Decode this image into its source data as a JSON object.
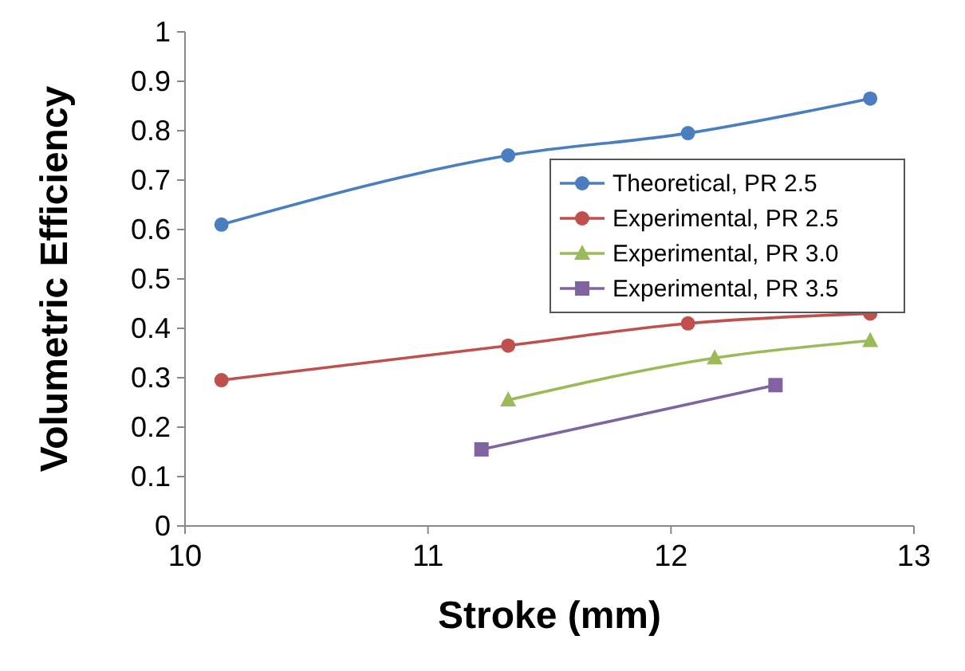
{
  "chart_data": {
    "type": "line",
    "xlabel": "Stroke (mm)",
    "ylabel": "Volumetric Efficiency",
    "xlim": [
      10,
      13
    ],
    "xticks": [
      10,
      11,
      12,
      13
    ],
    "ylim": [
      0,
      1
    ],
    "yticks": [
      0,
      0.1,
      0.2,
      0.3,
      0.4,
      0.5,
      0.6,
      0.7,
      0.8,
      0.9,
      1
    ],
    "grid": false,
    "legend": "right",
    "line_style": "solid",
    "series": [
      {
        "name": "Theoretical, PR 2.5",
        "color": "#4a7ebf",
        "marker": "circle",
        "x": [
          10.15,
          11.33,
          12.07,
          12.82
        ],
        "values": [
          0.61,
          0.75,
          0.795,
          0.865
        ]
      },
      {
        "name": "Experimental, PR 2.5",
        "color": "#c0504d",
        "marker": "circle",
        "x": [
          10.15,
          11.33,
          12.07,
          12.82
        ],
        "values": [
          0.295,
          0.365,
          0.41,
          0.43
        ]
      },
      {
        "name": "Experimental, PR 3.0",
        "color": "#9bbb59",
        "marker": "triangle",
        "x": [
          11.33,
          12.18,
          12.82
        ],
        "values": [
          0.255,
          0.34,
          0.375
        ]
      },
      {
        "name": "Experimental, PR 3.5",
        "color": "#8064a2",
        "marker": "square",
        "x": [
          11.22,
          12.43
        ],
        "values": [
          0.155,
          0.285
        ]
      }
    ]
  }
}
